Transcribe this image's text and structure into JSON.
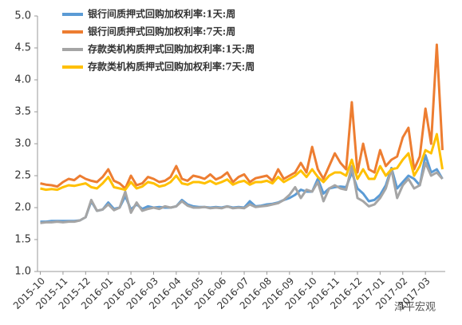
{
  "chart_data": {
    "type": "line",
    "categories": [
      "2015-10",
      null,
      null,
      null,
      "2015-11",
      null,
      null,
      null,
      "2015-12",
      null,
      null,
      null,
      "2016-01",
      null,
      null,
      null,
      "2016-02",
      null,
      null,
      null,
      "2016-03",
      null,
      null,
      null,
      "2016-04",
      null,
      null,
      null,
      "2016-05",
      null,
      null,
      null,
      "2016-06",
      null,
      null,
      null,
      "2016-07",
      null,
      null,
      null,
      "2016-08",
      null,
      null,
      null,
      "2016-09",
      null,
      null,
      null,
      "2016-10",
      null,
      null,
      null,
      "2016-11",
      null,
      null,
      null,
      "2016-12",
      null,
      null,
      null,
      "2017-01",
      null,
      null,
      null,
      "2017-02",
      null,
      null,
      null,
      "2017-03",
      null,
      null,
      null
    ],
    "series": [
      {
        "name": "银行间质押式回购加权利率:1天:周",
        "color": "#5b9bd5",
        "values": [
          1.78,
          1.78,
          1.79,
          1.79,
          1.79,
          1.79,
          1.79,
          1.8,
          1.85,
          2.1,
          1.95,
          1.97,
          2.08,
          1.98,
          2.0,
          2.18,
          1.97,
          2.05,
          1.98,
          2.02,
          2.0,
          2.01,
          2.0,
          2.0,
          2.02,
          2.12,
          2.05,
          2.02,
          2.01,
          2.01,
          2.0,
          2.01,
          2.0,
          2.02,
          2.0,
          2.01,
          2.0,
          2.1,
          2.02,
          2.03,
          2.05,
          2.06,
          2.08,
          2.12,
          2.15,
          2.2,
          2.28,
          2.25,
          2.25,
          2.45,
          2.22,
          2.3,
          2.32,
          2.33,
          2.32,
          2.55,
          2.3,
          2.22,
          2.1,
          2.12,
          2.2,
          2.35,
          2.62,
          2.3,
          2.4,
          2.5,
          2.45,
          2.35,
          2.82,
          2.55,
          2.6,
          2.45
        ]
      },
      {
        "name": "银行间质押式回购加权利率:7天:周",
        "color": "#ed7d31",
        "values": [
          2.38,
          2.36,
          2.35,
          2.33,
          2.4,
          2.45,
          2.43,
          2.5,
          2.45,
          2.42,
          2.4,
          2.48,
          2.6,
          2.42,
          2.38,
          2.3,
          2.5,
          2.35,
          2.38,
          2.48,
          2.45,
          2.4,
          2.42,
          2.48,
          2.65,
          2.45,
          2.42,
          2.5,
          2.48,
          2.45,
          2.52,
          2.44,
          2.48,
          2.55,
          2.4,
          2.48,
          2.52,
          2.4,
          2.46,
          2.48,
          2.5,
          2.42,
          2.6,
          2.45,
          2.5,
          2.55,
          2.7,
          2.55,
          2.95,
          2.6,
          2.45,
          2.65,
          2.85,
          2.7,
          2.6,
          3.65,
          2.55,
          3.0,
          2.6,
          2.55,
          2.9,
          2.65,
          2.75,
          2.8,
          3.1,
          3.25,
          2.6,
          2.8,
          3.55,
          3.0,
          4.55,
          2.9
        ]
      },
      {
        "name": "存款类机构质押式回购加权利率:1天:周",
        "color": "#a5a5a5",
        "values": [
          1.76,
          1.77,
          1.77,
          1.78,
          1.77,
          1.78,
          1.78,
          1.8,
          1.85,
          2.12,
          1.95,
          1.97,
          2.05,
          1.96,
          2.0,
          2.25,
          1.92,
          2.08,
          1.95,
          1.98,
          2.0,
          1.98,
          2.02,
          2.0,
          2.02,
          2.1,
          2.03,
          2.0,
          2.0,
          2.01,
          1.99,
          2.0,
          1.99,
          2.02,
          1.99,
          2.0,
          1.99,
          2.05,
          2.01,
          2.02,
          2.03,
          2.05,
          2.07,
          2.12,
          2.2,
          2.32,
          2.15,
          2.28,
          2.25,
          2.4,
          2.1,
          2.3,
          2.35,
          2.3,
          2.28,
          2.65,
          2.15,
          2.1,
          2.02,
          2.05,
          2.15,
          2.3,
          2.6,
          2.15,
          2.35,
          2.45,
          2.3,
          2.35,
          2.7,
          2.5,
          2.55,
          2.45
        ]
      },
      {
        "name": "存款类机构质押式回购加权利率:7天:周",
        "color": "#ffc000",
        "values": [
          2.3,
          2.28,
          2.29,
          2.28,
          2.32,
          2.35,
          2.34,
          2.36,
          2.38,
          2.32,
          2.3,
          2.38,
          2.48,
          2.32,
          2.3,
          2.28,
          2.4,
          2.3,
          2.33,
          2.4,
          2.38,
          2.33,
          2.35,
          2.4,
          2.5,
          2.38,
          2.36,
          2.4,
          2.4,
          2.38,
          2.42,
          2.37,
          2.4,
          2.44,
          2.36,
          2.4,
          2.42,
          2.36,
          2.4,
          2.4,
          2.42,
          2.38,
          2.48,
          2.4,
          2.45,
          2.5,
          2.58,
          2.48,
          2.6,
          2.48,
          2.4,
          2.5,
          2.55,
          2.55,
          2.5,
          2.75,
          2.45,
          2.6,
          2.45,
          2.45,
          2.65,
          2.5,
          2.6,
          2.62,
          2.75,
          2.85,
          2.5,
          2.65,
          2.9,
          2.85,
          3.15,
          2.6
        ]
      }
    ],
    "ylim": [
      1,
      5
    ],
    "yticks": [
      {
        "value": 1,
        "label": "1.0"
      },
      1.5,
      {
        "value": 2,
        "label": "2.0"
      },
      2.5,
      {
        "value": 3,
        "label": "3.0"
      },
      3.5,
      {
        "value": 4,
        "label": "4.0"
      },
      4.5,
      {
        "value": 5,
        "label": "5.0"
      }
    ],
    "grid": false,
    "legend": "upper left",
    "watermark": "泽平宏观"
  }
}
